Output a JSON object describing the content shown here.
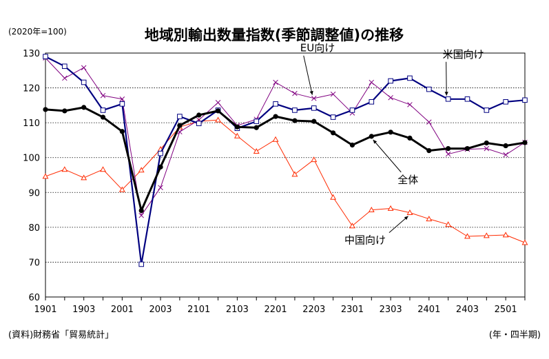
{
  "chart_data": {
    "type": "line",
    "title": "地域別輸出数量指数(季節調整値)の推移",
    "unit_note": "(2020年=100)",
    "source": "(資料)財務省「貿易統計」",
    "period_note": "(年・四半期)",
    "ylim": [
      60,
      130
    ],
    "y_ticks": [
      60,
      70,
      80,
      90,
      100,
      110,
      120,
      130
    ],
    "grid": "horizontal-dotted",
    "x": [
      "1901",
      "1902",
      "1903",
      "1904",
      "2001",
      "2002",
      "2003",
      "2004",
      "2101",
      "2102",
      "2103",
      "2104",
      "2201",
      "2202",
      "2203",
      "2204",
      "2301",
      "2302",
      "2303",
      "2304",
      "2401",
      "2402",
      "2403",
      "2404",
      "2501",
      "2502"
    ],
    "x_tick_labels": [
      "1901",
      "1903",
      "2001",
      "2003",
      "2101",
      "2103",
      "2201",
      "2203",
      "2301",
      "2303",
      "2401",
      "2403",
      "2501"
    ],
    "series": [
      {
        "name": "全体",
        "color": "#000000",
        "marker": "circle",
        "values": [
          113.8,
          113.4,
          114.4,
          111.6,
          107.5,
          84.8,
          97.3,
          109.2,
          112.2,
          113.4,
          108.8,
          108.6,
          111.8,
          110.6,
          110.4,
          107.1,
          103.6,
          106.1,
          107.3,
          105.6,
          102.0,
          102.6,
          102.6,
          104.2,
          103.4,
          104.3
        ]
      },
      {
        "name": "米国向け",
        "color": "#000080",
        "marker": "square",
        "values": [
          129.0,
          126.2,
          121.6,
          113.6,
          115.4,
          69.4,
          101.2,
          111.8,
          109.8,
          113.6,
          108.4,
          110.4,
          115.4,
          113.6,
          114.2,
          111.6,
          113.6,
          116.0,
          122.0,
          122.8,
          119.6,
          116.8,
          116.8,
          113.6,
          116.0,
          116.5
        ]
      },
      {
        "name": "EU向け",
        "color": "#800080",
        "marker": "x",
        "values": [
          128.6,
          122.8,
          125.8,
          117.8,
          116.8,
          83.4,
          91.4,
          107.4,
          110.8,
          115.8,
          109.2,
          111.0,
          121.6,
          118.4,
          117.0,
          118.2,
          112.8,
          121.6,
          117.2,
          115.2,
          110.2,
          101.0,
          102.4,
          102.6,
          100.8,
          104.4
        ]
      },
      {
        "name": "中国向け",
        "color": "#ff2a00",
        "marker": "triangle",
        "values": [
          94.6,
          96.6,
          94.2,
          96.6,
          90.8,
          96.4,
          102.4,
          108.8,
          110.4,
          110.8,
          106.2,
          101.8,
          105.2,
          95.2,
          99.4,
          88.6,
          80.4,
          85.0,
          85.4,
          84.2,
          82.4,
          80.8,
          77.4,
          77.6,
          77.8,
          75.6
        ]
      }
    ],
    "labels": [
      {
        "series": 0,
        "text": "全体",
        "at_index": 17
      },
      {
        "series": 1,
        "text": "米国向け",
        "at_index": 21
      },
      {
        "series": 2,
        "text": "EU向け",
        "at_index": 14
      },
      {
        "series": 3,
        "text": "中国向け",
        "at_index": 19
      }
    ]
  }
}
